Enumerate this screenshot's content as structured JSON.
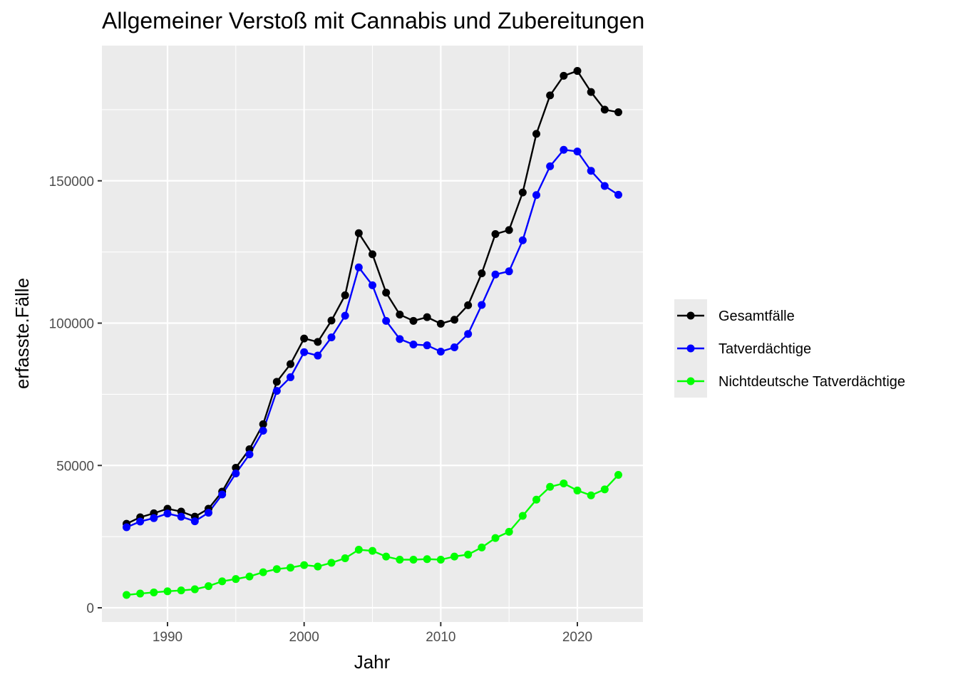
{
  "chart_data": {
    "type": "line",
    "title": "Allgemeiner Verstoß mit Cannabis und Zubereitungen",
    "xlabel": "Jahr",
    "ylabel": "erfasste.Fälle",
    "xlim": [
      1985.2,
      2024.8
    ],
    "ylim": [
      -5000,
      197500
    ],
    "x_ticks": [
      1990,
      2000,
      2010,
      2020
    ],
    "y_ticks": [
      0,
      50000,
      100000,
      150000
    ],
    "grid": true,
    "legend_position": "right",
    "x": [
      1987,
      1988,
      1989,
      1990,
      1991,
      1992,
      1993,
      1994,
      1995,
      1996,
      1997,
      1998,
      1999,
      2000,
      2001,
      2002,
      2003,
      2004,
      2005,
      2006,
      2007,
      2008,
      2009,
      2010,
      2011,
      2012,
      2013,
      2014,
      2015,
      2016,
      2017,
      2018,
      2019,
      2020,
      2021,
      2022,
      2023
    ],
    "series": [
      {
        "name": "Gesamtfälle",
        "color": "#000000",
        "values": [
          29500,
          31800,
          33200,
          34800,
          33800,
          32000,
          34800,
          40800,
          49200,
          55700,
          64500,
          79400,
          85600,
          94600,
          93400,
          100900,
          109800,
          131600,
          124200,
          110700,
          103000,
          100800,
          102100,
          99800,
          101200,
          106300,
          117500,
          131300,
          132700,
          145900,
          166500,
          180000,
          186900,
          188600,
          181200,
          175000,
          174100
        ]
      },
      {
        "name": "Tatverdächtige",
        "color": "#0000ff",
        "values": [
          28300,
          30300,
          31500,
          33100,
          32000,
          30400,
          33400,
          39800,
          47200,
          53900,
          62200,
          76200,
          81000,
          89800,
          88600,
          95000,
          102600,
          119600,
          113300,
          100800,
          94400,
          92500,
          92200,
          90000,
          91500,
          96200,
          106400,
          117100,
          118200,
          129100,
          145000,
          155100,
          160900,
          160300,
          153500,
          148200,
          145100
        ]
      },
      {
        "name": "Nichtdeutsche Tatverdächtige",
        "color": "#00ff00",
        "values": [
          4500,
          5000,
          5400,
          5800,
          6100,
          6500,
          7600,
          9300,
          10100,
          11000,
          12500,
          13600,
          14100,
          15000,
          14500,
          15800,
          17400,
          20400,
          20000,
          18000,
          16900,
          16900,
          17100,
          16900,
          18000,
          18700,
          21200,
          24500,
          26700,
          32300,
          38000,
          42500,
          43700,
          41200,
          39500,
          41600,
          46700
        ]
      }
    ]
  }
}
